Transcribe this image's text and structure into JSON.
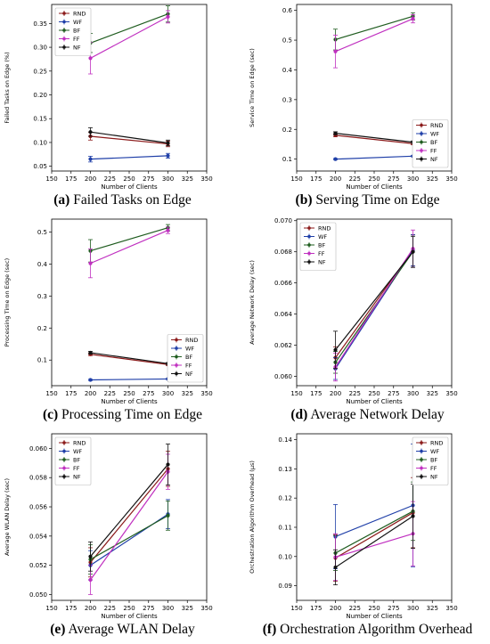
{
  "colors": {
    "RND": "#8b1a1a",
    "WF": "#1f3fa8",
    "BF": "#1f5c1f",
    "FF": "#c030c0",
    "NF": "#111111"
  },
  "chart_data": [
    {
      "id": "a",
      "type": "line",
      "caption_letter": "(a)",
      "caption_text": "Failed Tasks on Edge",
      "xlabel": "Number of Clients",
      "ylabel": "Failed Tasks on Edge (%)",
      "xlim": [
        150,
        350
      ],
      "ylim": [
        0.04,
        0.39
      ],
      "xticks": [
        150,
        175,
        200,
        225,
        250,
        275,
        300,
        325,
        350
      ],
      "yticks": [
        0.05,
        0.1,
        0.15,
        0.2,
        0.25,
        0.3,
        0.35
      ],
      "ytick_labels": [
        "0.05",
        "0.10",
        "0.15",
        "0.20",
        "0.25",
        "0.30",
        "0.35"
      ],
      "legend": "top-left",
      "x": [
        200,
        300
      ],
      "series": [
        {
          "name": "RND",
          "values": [
            0.113,
            0.097
          ],
          "err": [
            0.008,
            0.006
          ]
        },
        {
          "name": "WF",
          "values": [
            0.065,
            0.072
          ],
          "err": [
            0.006,
            0.005
          ]
        },
        {
          "name": "BF",
          "values": [
            0.309,
            0.37
          ],
          "err": [
            0.02,
            0.017
          ]
        },
        {
          "name": "FF",
          "values": [
            0.277,
            0.364
          ],
          "err": [
            0.033,
            0.013
          ]
        },
        {
          "name": "NF",
          "values": [
            0.122,
            0.099
          ],
          "err": [
            0.009,
            0.006
          ]
        }
      ]
    },
    {
      "id": "b",
      "type": "line",
      "caption_letter": "(b)",
      "caption_text": "Serving Time on Edge",
      "xlabel": "Number of Clients",
      "ylabel": "Service Time on Edge (sec)",
      "xlim": [
        150,
        350
      ],
      "ylim": [
        0.06,
        0.62
      ],
      "xticks": [
        150,
        175,
        200,
        225,
        250,
        275,
        300,
        325,
        350
      ],
      "yticks": [
        0.1,
        0.2,
        0.3,
        0.4,
        0.5,
        0.6
      ],
      "ytick_labels": [
        "0.1",
        "0.2",
        "0.3",
        "0.4",
        "0.5",
        "0.6"
      ],
      "legend": "lower-right",
      "x": [
        200,
        300
      ],
      "series": [
        {
          "name": "RND",
          "values": [
            0.18,
            0.152
          ],
          "err": [
            0.005,
            0.004
          ]
        },
        {
          "name": "WF",
          "values": [
            0.1,
            0.11
          ],
          "err": [
            0.002,
            0.002
          ]
        },
        {
          "name": "BF",
          "values": [
            0.502,
            0.58
          ],
          "err": [
            0.035,
            0.012
          ]
        },
        {
          "name": "FF",
          "values": [
            0.462,
            0.572
          ],
          "err": [
            0.055,
            0.014
          ]
        },
        {
          "name": "NF",
          "values": [
            0.187,
            0.157
          ],
          "err": [
            0.005,
            0.004
          ]
        }
      ]
    },
    {
      "id": "c",
      "type": "line",
      "caption_letter": "(c)",
      "caption_text": "Processing Time on Edge",
      "xlabel": "Number of Clients",
      "ylabel": "Processing Time on Edge (sec)",
      "xlim": [
        150,
        350
      ],
      "ylim": [
        0.02,
        0.54
      ],
      "xticks": [
        150,
        175,
        200,
        225,
        250,
        275,
        300,
        325,
        350
      ],
      "yticks": [
        0.1,
        0.2,
        0.3,
        0.4,
        0.5
      ],
      "ytick_labels": [
        "0.1",
        "0.2",
        "0.3",
        "0.4",
        "0.5"
      ],
      "legend": "lower-right",
      "x": [
        200,
        300
      ],
      "series": [
        {
          "name": "RND",
          "values": [
            0.118,
            0.086
          ],
          "err": [
            0.004,
            0.003
          ]
        },
        {
          "name": "WF",
          "values": [
            0.038,
            0.041
          ],
          "err": [
            0.002,
            0.002
          ]
        },
        {
          "name": "BF",
          "values": [
            0.441,
            0.513
          ],
          "err": [
            0.035,
            0.01
          ]
        },
        {
          "name": "FF",
          "values": [
            0.402,
            0.505
          ],
          "err": [
            0.045,
            0.01
          ]
        },
        {
          "name": "NF",
          "values": [
            0.123,
            0.089
          ],
          "err": [
            0.004,
            0.003
          ]
        }
      ]
    },
    {
      "id": "d",
      "type": "line",
      "caption_letter": "(d)",
      "caption_text": "Average Network Delay",
      "xlabel": "Number of Clients",
      "ylabel": "Average Network Delay (sec)",
      "xlim": [
        150,
        350
      ],
      "ylim": [
        0.0594,
        0.0701
      ],
      "xticks": [
        150,
        175,
        200,
        225,
        250,
        275,
        300,
        325,
        350
      ],
      "yticks": [
        0.06,
        0.062,
        0.064,
        0.066,
        0.068,
        0.07
      ],
      "ytick_labels": [
        "0.060",
        "0.062",
        "0.064",
        "0.066",
        "0.068",
        "0.070"
      ],
      "legend": "top-left",
      "x": [
        200,
        300
      ],
      "series": [
        {
          "name": "RND",
          "values": [
            0.0612,
            0.0681
          ],
          "err": [
            0.0007,
            0.001
          ]
        },
        {
          "name": "WF",
          "values": [
            0.0605,
            0.0681
          ],
          "err": [
            0.0007,
            0.001
          ]
        },
        {
          "name": "BF",
          "values": [
            0.0609,
            0.068
          ],
          "err": [
            0.0007,
            0.001
          ]
        },
        {
          "name": "FF",
          "values": [
            0.0606,
            0.0682
          ],
          "err": [
            0.0009,
            0.0012
          ]
        },
        {
          "name": "NF",
          "values": [
            0.0617,
            0.068
          ],
          "err": [
            0.0012,
            0.001
          ]
        }
      ]
    },
    {
      "id": "e",
      "type": "line",
      "caption_letter": "(e)",
      "caption_text": "Average WLAN Delay",
      "xlabel": "Number of Clients",
      "ylabel": "Average WLAN Delay (sec)",
      "xlim": [
        150,
        350
      ],
      "ylim": [
        0.0496,
        0.061
      ],
      "xticks": [
        150,
        175,
        200,
        225,
        250,
        275,
        300,
        325,
        350
      ],
      "yticks": [
        0.05,
        0.052,
        0.054,
        0.056,
        0.058,
        0.06
      ],
      "ytick_labels": [
        "0.050",
        "0.052",
        "0.054",
        "0.056",
        "0.058",
        "0.060"
      ],
      "legend": "top-left",
      "x": [
        200,
        300
      ],
      "series": [
        {
          "name": "RND",
          "values": [
            0.0522,
            0.0586
          ],
          "err": [
            0.001,
            0.0012
          ]
        },
        {
          "name": "WF",
          "values": [
            0.052,
            0.0555
          ],
          "err": [
            0.001,
            0.001
          ]
        },
        {
          "name": "BF",
          "values": [
            0.0524,
            0.0554
          ],
          "err": [
            0.001,
            0.001
          ]
        },
        {
          "name": "FF",
          "values": [
            0.051,
            0.0584
          ],
          "err": [
            0.001,
            0.0012
          ]
        },
        {
          "name": "NF",
          "values": [
            0.0526,
            0.0589
          ],
          "err": [
            0.001,
            0.0014
          ]
        }
      ]
    },
    {
      "id": "f",
      "type": "line",
      "caption_letter": "(f)",
      "caption_text": "Orchestration Algorithm Overhead",
      "xlabel": "Number of Clients",
      "ylabel": "Orchestration Algorithm Overhead (μs)",
      "xlim": [
        150,
        350
      ],
      "ylim": [
        0.085,
        0.142
      ],
      "xticks": [
        150,
        175,
        200,
        225,
        250,
        275,
        300,
        325,
        350
      ],
      "yticks": [
        0.09,
        0.1,
        0.11,
        0.12,
        0.13,
        0.14
      ],
      "ytick_labels": [
        "0.09",
        "0.10",
        "0.11",
        "0.12",
        "0.13",
        "0.14"
      ],
      "legend": "top-right",
      "x": [
        200,
        300
      ],
      "series": [
        {
          "name": "RND",
          "values": [
            0.0995,
            0.115
          ],
          "err": [
            0.008,
            0.012
          ]
        },
        {
          "name": "WF",
          "values": [
            0.1068,
            0.1175
          ],
          "err": [
            0.011,
            0.021
          ]
        },
        {
          "name": "BF",
          "values": [
            0.1012,
            0.1155
          ],
          "err": [
            0.006,
            0.01
          ]
        },
        {
          "name": "FF",
          "values": [
            0.0998,
            0.1078
          ],
          "err": [
            0.008,
            0.011
          ]
        },
        {
          "name": "NF",
          "values": [
            0.0963,
            0.1138
          ],
          "err": [
            0.006,
            0.011
          ]
        }
      ]
    }
  ]
}
